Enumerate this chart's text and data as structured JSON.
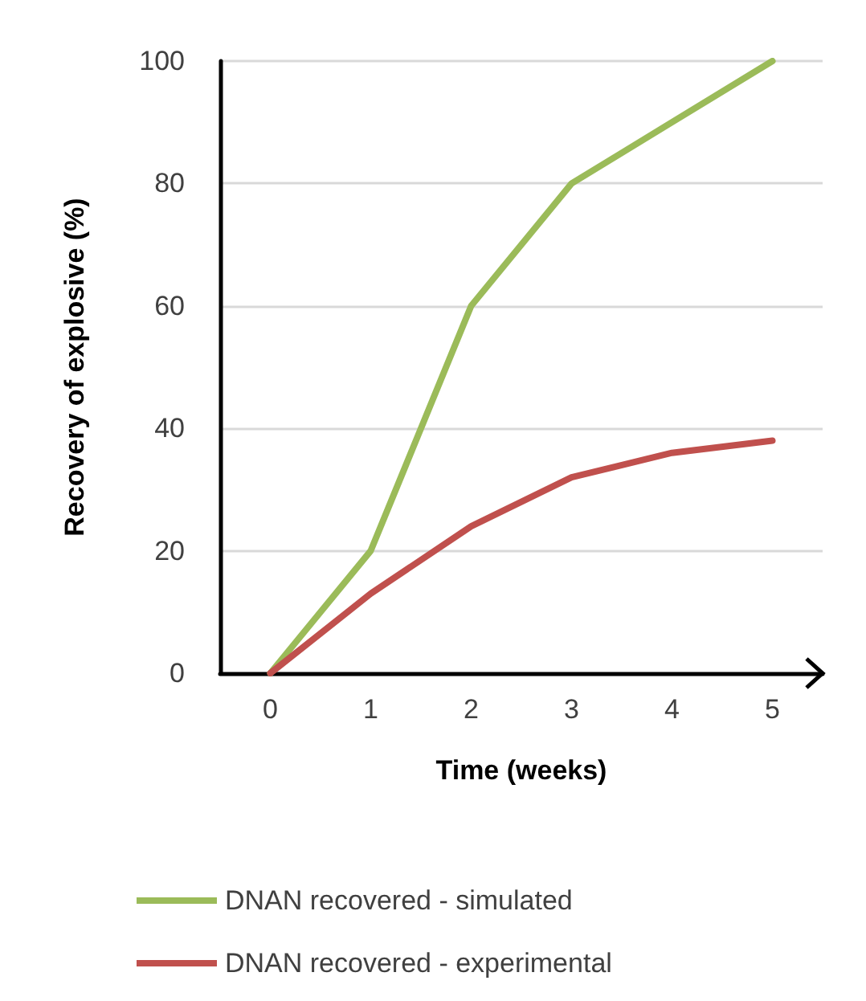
{
  "chart_data": {
    "type": "line",
    "xlabel": "Time (weeks)",
    "ylabel": "Recovery of explosive (%)",
    "x": [
      0,
      1,
      2,
      3,
      4,
      5
    ],
    "series": [
      {
        "name": "DNAN recovered - simulated",
        "color": "#9bbb59",
        "values": [
          0,
          20,
          60,
          80,
          90,
          100
        ]
      },
      {
        "name": "DNAN recovered - experimental",
        "color": "#c0504d",
        "values": [
          0,
          13,
          24,
          32,
          36,
          38
        ]
      }
    ],
    "xlim": [
      -0.5,
      5.5
    ],
    "xticks": [
      0,
      1,
      2,
      3,
      4,
      5
    ],
    "ylim": [
      0,
      100
    ],
    "yticks": [
      0,
      20,
      40,
      60,
      80,
      100
    ],
    "grid": "y",
    "legend": "bottom",
    "marker": "none",
    "line_style": "solid"
  }
}
